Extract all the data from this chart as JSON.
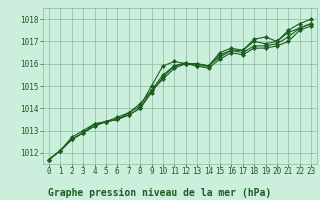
{
  "title": "Graphe pression niveau de la mer (hPa)",
  "bg_color": "#cceedd",
  "grid_color": "#88bb99",
  "line_color": "#1a5e20",
  "xlim": [
    -0.5,
    23.5
  ],
  "ylim": [
    1011.5,
    1018.5
  ],
  "yticks": [
    1012,
    1013,
    1014,
    1015,
    1016,
    1017,
    1018
  ],
  "xticks": [
    0,
    1,
    2,
    3,
    4,
    5,
    6,
    7,
    8,
    9,
    10,
    11,
    12,
    13,
    14,
    15,
    16,
    17,
    18,
    19,
    20,
    21,
    22,
    23
  ],
  "series": [
    [
      1011.7,
      1012.1,
      1012.7,
      1013.0,
      1013.3,
      1013.4,
      1013.6,
      1013.8,
      1014.1,
      1015.0,
      1015.9,
      1016.1,
      1016.0,
      1016.0,
      1015.9,
      1016.5,
      1016.7,
      1016.6,
      1017.1,
      1017.2,
      1017.0,
      1017.5,
      1017.8,
      1018.0
    ],
    [
      1011.7,
      1012.1,
      1012.6,
      1012.9,
      1013.3,
      1013.4,
      1013.5,
      1013.8,
      1014.2,
      1014.8,
      1015.3,
      1015.8,
      1016.0,
      1016.0,
      1015.9,
      1016.4,
      1016.6,
      1016.6,
      1017.0,
      1016.9,
      1017.0,
      1017.4,
      1017.6,
      1017.8
    ],
    [
      1011.7,
      1012.1,
      1012.6,
      1012.9,
      1013.2,
      1013.4,
      1013.5,
      1013.7,
      1014.0,
      1014.8,
      1015.5,
      1015.9,
      1016.05,
      1015.9,
      1015.9,
      1016.3,
      1016.6,
      1016.5,
      1016.8,
      1016.8,
      1016.9,
      1017.2,
      1017.6,
      1017.8
    ],
    [
      1011.7,
      1012.1,
      1012.6,
      1012.9,
      1013.2,
      1013.4,
      1013.5,
      1013.7,
      1014.0,
      1014.7,
      1015.4,
      1015.9,
      1016.0,
      1015.9,
      1015.8,
      1016.2,
      1016.5,
      1016.4,
      1016.7,
      1016.7,
      1016.8,
      1017.0,
      1017.5,
      1017.7
    ]
  ],
  "marker": "D",
  "markersize": 2.0,
  "linewidth": 0.8,
  "title_fontsize": 7,
  "tick_fontsize": 5.5,
  "ylabel_fontsize": 5.5
}
